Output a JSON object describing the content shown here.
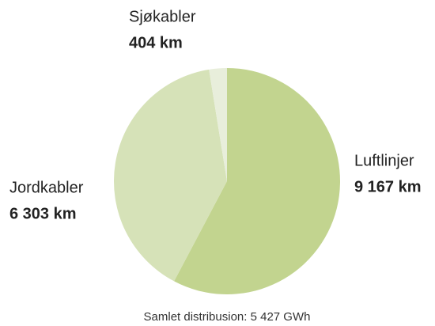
{
  "chart_data": {
    "type": "pie",
    "categories": [
      "Luftlinjer",
      "Jordkabler",
      "Sjøkabler"
    ],
    "values": [
      9167,
      6303,
      404
    ],
    "value_labels": [
      "9 167 km",
      "6 303 km",
      "404 km"
    ],
    "colors": [
      "#c2d48f",
      "#d6e2b8",
      "#e8eedb"
    ],
    "note": "Samlet distribusion: 5 427 GWh"
  }
}
